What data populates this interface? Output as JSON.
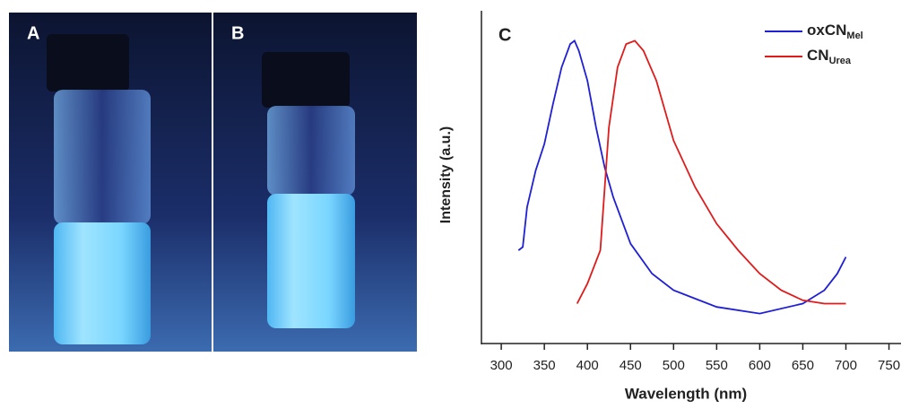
{
  "photo_labels": [
    "A",
    "B"
  ],
  "chart_data": {
    "type": "line",
    "panel_label": "C",
    "x_label": "Wavelength (nm)",
    "y_label": "Intensity (a.u.)",
    "xlim": [
      277,
      764
    ],
    "ylim": [
      0,
      1
    ],
    "xticks": [
      300,
      350,
      400,
      450,
      500,
      550,
      600,
      650,
      700,
      750
    ],
    "legend": "upper right",
    "series": [
      {
        "name": "oxCN",
        "name_subscript": "Mel",
        "color": "#1f1fd6",
        "x": [
          320,
          325,
          330,
          340,
          350,
          360,
          370,
          380,
          385,
          390,
          400,
          410,
          420,
          430,
          450,
          475,
          500,
          550,
          600,
          650,
          675,
          690,
          700
        ],
        "values": [
          0.28,
          0.29,
          0.41,
          0.52,
          0.6,
          0.72,
          0.83,
          0.9,
          0.91,
          0.88,
          0.79,
          0.65,
          0.53,
          0.44,
          0.3,
          0.21,
          0.16,
          0.11,
          0.09,
          0.12,
          0.16,
          0.21,
          0.26
        ]
      },
      {
        "name": "CN",
        "name_subscript": "Urea",
        "color": "#e01b1b",
        "x": [
          388,
          400,
          415,
          425,
          435,
          445,
          455,
          465,
          480,
          500,
          525,
          550,
          575,
          600,
          625,
          650,
          675,
          700
        ],
        "values": [
          0.12,
          0.18,
          0.28,
          0.65,
          0.83,
          0.9,
          0.91,
          0.88,
          0.79,
          0.61,
          0.47,
          0.36,
          0.28,
          0.21,
          0.16,
          0.13,
          0.12,
          0.12
        ]
      }
    ]
  }
}
